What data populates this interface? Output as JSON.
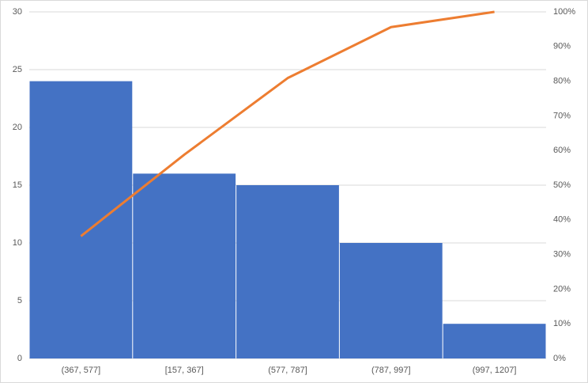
{
  "chart_data": {
    "type": "pareto",
    "categories": [
      "(367, 577]",
      "[157, 367]",
      "(577, 787]",
      "(787, 997]",
      "(997, 1207]"
    ],
    "series": [
      {
        "type": "bar",
        "color": "#4472c4",
        "values": [
          24,
          16,
          15,
          10,
          3
        ]
      },
      {
        "type": "line",
        "axis": "y2",
        "color": "#ed7d31",
        "values": [
          35.3,
          58.8,
          80.9,
          95.6,
          100
        ]
      }
    ],
    "ylim": [
      0,
      30
    ],
    "yticks": [
      0,
      5,
      10,
      15,
      20,
      25,
      30
    ],
    "y2lim": [
      0,
      100
    ],
    "y2ticks": [
      {
        "value": 0,
        "label": "0%"
      },
      {
        "value": 10,
        "label": "10%"
      },
      {
        "value": 20,
        "label": "20%"
      },
      {
        "value": 30,
        "label": "30%"
      },
      {
        "value": 40,
        "label": "40%"
      },
      {
        "value": 50,
        "label": "50%"
      },
      {
        "value": 60,
        "label": "60%"
      },
      {
        "value": 70,
        "label": "70%"
      },
      {
        "value": 80,
        "label": "80%"
      },
      {
        "value": 90,
        "label": "90%"
      },
      {
        "value": 100,
        "label": "100%"
      }
    ],
    "grid": true
  }
}
